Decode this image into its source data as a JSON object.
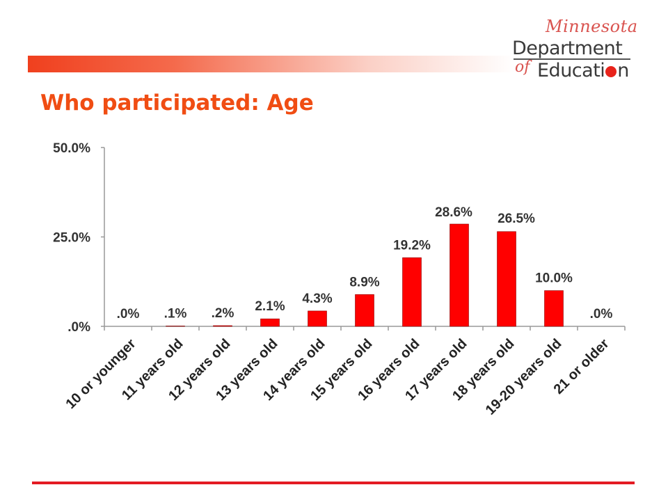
{
  "slide": {
    "title": "Who participated: Age"
  },
  "logo": {
    "script_text": "Minnesota",
    "line1": "Department",
    "of_text": "of",
    "line2": "Educati",
    "line2_end": "n"
  },
  "colors": {
    "bar": "#ff0000",
    "title": "#f04d13",
    "accent_rule": "#e31b23"
  },
  "chart_data": {
    "type": "bar",
    "categories": [
      "10 or younger",
      "11 years old",
      "12 years old",
      "13 years old",
      "14 years old",
      "15 years old",
      "16 years old",
      "17 years old",
      "18 years old",
      "19-20 years old",
      "21 or older"
    ],
    "values": [
      0.0,
      0.1,
      0.2,
      2.1,
      4.3,
      8.9,
      19.2,
      28.6,
      26.5,
      10.0,
      0.0
    ],
    "data_labels": [
      ".0%",
      ".1%",
      ".2%",
      "2.1%",
      "4.3%",
      "8.9%",
      "19.2%",
      "28.6%",
      "26.5%",
      "10.0%",
      ".0%"
    ],
    "ylim": [
      0,
      50
    ],
    "y_ticks": [
      0,
      25,
      50
    ],
    "y_tick_labels": [
      ".0%",
      "25.0%",
      "50.0%"
    ],
    "xlabel": "",
    "ylabel": "",
    "grid": false,
    "legend": "none"
  }
}
